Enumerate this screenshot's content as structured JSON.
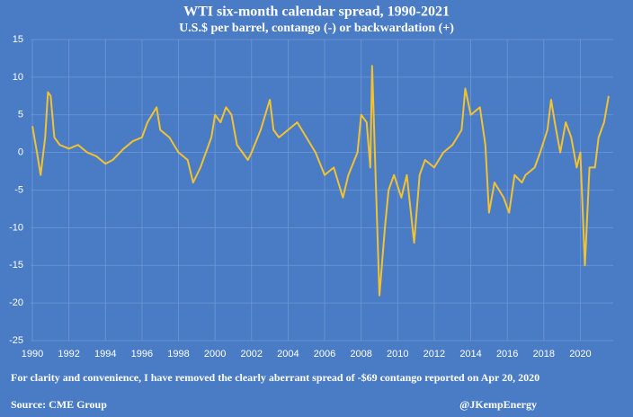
{
  "chart_data": {
    "type": "line",
    "title": "WTI six-month calendar spread, 1990-2021",
    "subtitle": "U.S.$ per barrel, contango (-) or backwardation (+)",
    "note": "For clarity and convenience, I have removed the clearly aberrant spread of -$69 contango reported on Apr 20, 2020",
    "source": "Source: CME Group",
    "credit": "@JKempEnergy",
    "x": [
      1990.0,
      1990.25,
      1990.45,
      1990.7,
      1990.85,
      1991.0,
      1991.2,
      1991.5,
      1992.0,
      1992.5,
      1993.0,
      1993.5,
      1994.0,
      1994.4,
      1995.0,
      1995.5,
      1996.0,
      1996.3,
      1996.8,
      1997.0,
      1997.5,
      1998.0,
      1998.5,
      1998.8,
      1999.2,
      1999.8,
      2000.0,
      2000.3,
      2000.6,
      2000.9,
      2001.2,
      2001.8,
      2002.0,
      2002.5,
      2003.0,
      2003.2,
      2003.5,
      2004.0,
      2004.5,
      2005.0,
      2005.5,
      2006.0,
      2006.5,
      2007.0,
      2007.3,
      2007.8,
      2008.0,
      2008.3,
      2008.5,
      2008.6,
      2008.75,
      2009.0,
      2009.3,
      2009.5,
      2009.8,
      2010.2,
      2010.5,
      2010.9,
      2011.2,
      2011.5,
      2012.0,
      2012.5,
      2013.0,
      2013.5,
      2013.7,
      2014.0,
      2014.5,
      2014.8,
      2015.0,
      2015.3,
      2015.8,
      2016.1,
      2016.4,
      2016.8,
      2017.0,
      2017.5,
      2017.8,
      2018.2,
      2018.4,
      2018.6,
      2018.9,
      2019.2,
      2019.5,
      2019.8,
      2020.0,
      2020.25,
      2020.5,
      2020.8,
      2021.0,
      2021.3,
      2021.55
    ],
    "series": [
      {
        "name": "WTI six-month calendar spread",
        "color": "#f2c230",
        "values": [
          3.5,
          0,
          -3,
          2,
          8,
          7.5,
          2,
          1,
          0.5,
          1,
          0,
          -0.5,
          -1.5,
          -1,
          0.5,
          1.5,
          2,
          4,
          6,
          3,
          2,
          0,
          -1,
          -4,
          -2,
          2,
          5,
          4,
          6,
          5,
          1,
          -1,
          0,
          3,
          7,
          3,
          2,
          3,
          4,
          2,
          0,
          -3,
          -2,
          -6,
          -3,
          0,
          5,
          4,
          -2,
          11.5,
          0,
          -19,
          -10,
          -5,
          -3,
          -6,
          -3,
          -12,
          -3,
          -1,
          -2,
          0,
          1,
          3,
          8.5,
          5,
          6,
          1,
          -8,
          -4,
          -6,
          -8,
          -3,
          -4,
          -3,
          -2,
          0,
          3,
          7,
          4,
          0,
          4,
          2,
          -2,
          0,
          -15,
          -2,
          -2,
          2,
          4,
          7.5
        ]
      }
    ],
    "xlim": [
      1989.9,
      2021.8
    ],
    "xticks": [
      1990,
      1992,
      1994,
      1996,
      1998,
      2000,
      2002,
      2004,
      2006,
      2008,
      2010,
      2012,
      2014,
      2016,
      2018,
      2020
    ],
    "ylim": [
      -25,
      15
    ],
    "yticks": [
      -25,
      -20,
      -15,
      -10,
      -5,
      0,
      5,
      10,
      15
    ],
    "grid": true
  }
}
